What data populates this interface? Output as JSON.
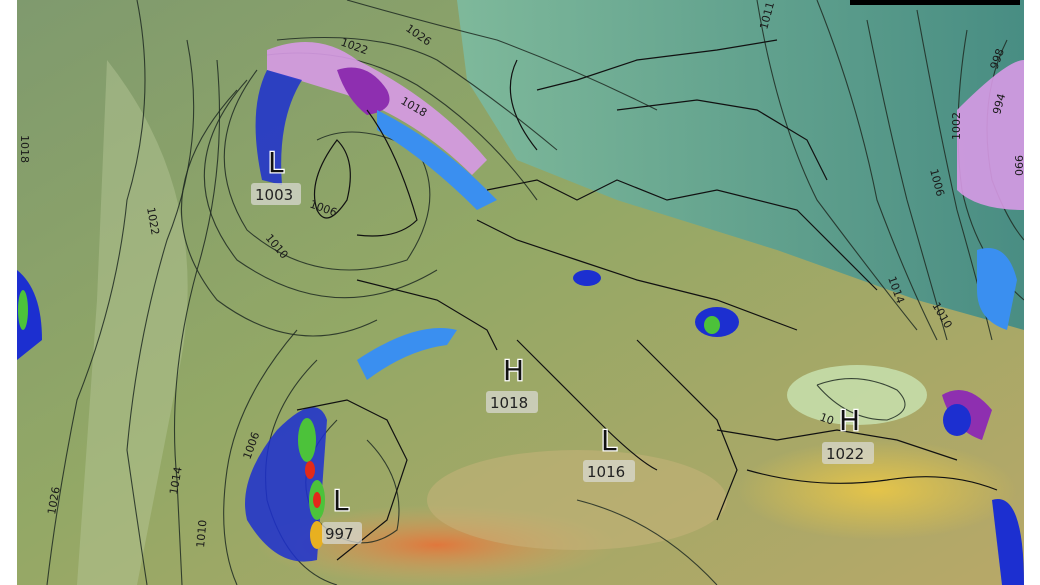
{
  "map": {
    "type": "weather forecast map: mean sea level pressure isobars (hPa) with precipitation",
    "colors": {
      "sea_green": "#7f9a6e",
      "north_teal": "#5fa89a",
      "land_olive": "#9aa360",
      "land_sand": "#c9b16e",
      "desert_orange": "#e08a4a",
      "rain_light": "#3a8ff0",
      "rain_heavy": "#1c2fd0",
      "rain_intense": "#4cc23a",
      "rain_extreme": "#e22a1a",
      "snow": "#d79ae6",
      "snow_heavy": "#8e2fb0"
    },
    "pressure_centers": [
      {
        "type": "L",
        "value": "1003"
      },
      {
        "type": "H",
        "value": "1018"
      },
      {
        "type": "L",
        "value": "1016"
      },
      {
        "type": "H",
        "value": "1022"
      },
      {
        "type": "L",
        "value": "997"
      }
    ],
    "isobar_labels": [
      "1026",
      "1022",
      "1018",
      "1011",
      "998",
      "994",
      "1002",
      "1006",
      "990",
      "1014",
      "1010",
      "1022",
      "1006",
      "1010",
      "1026",
      "1014",
      "1006",
      "1010",
      "1018",
      "10"
    ]
  }
}
